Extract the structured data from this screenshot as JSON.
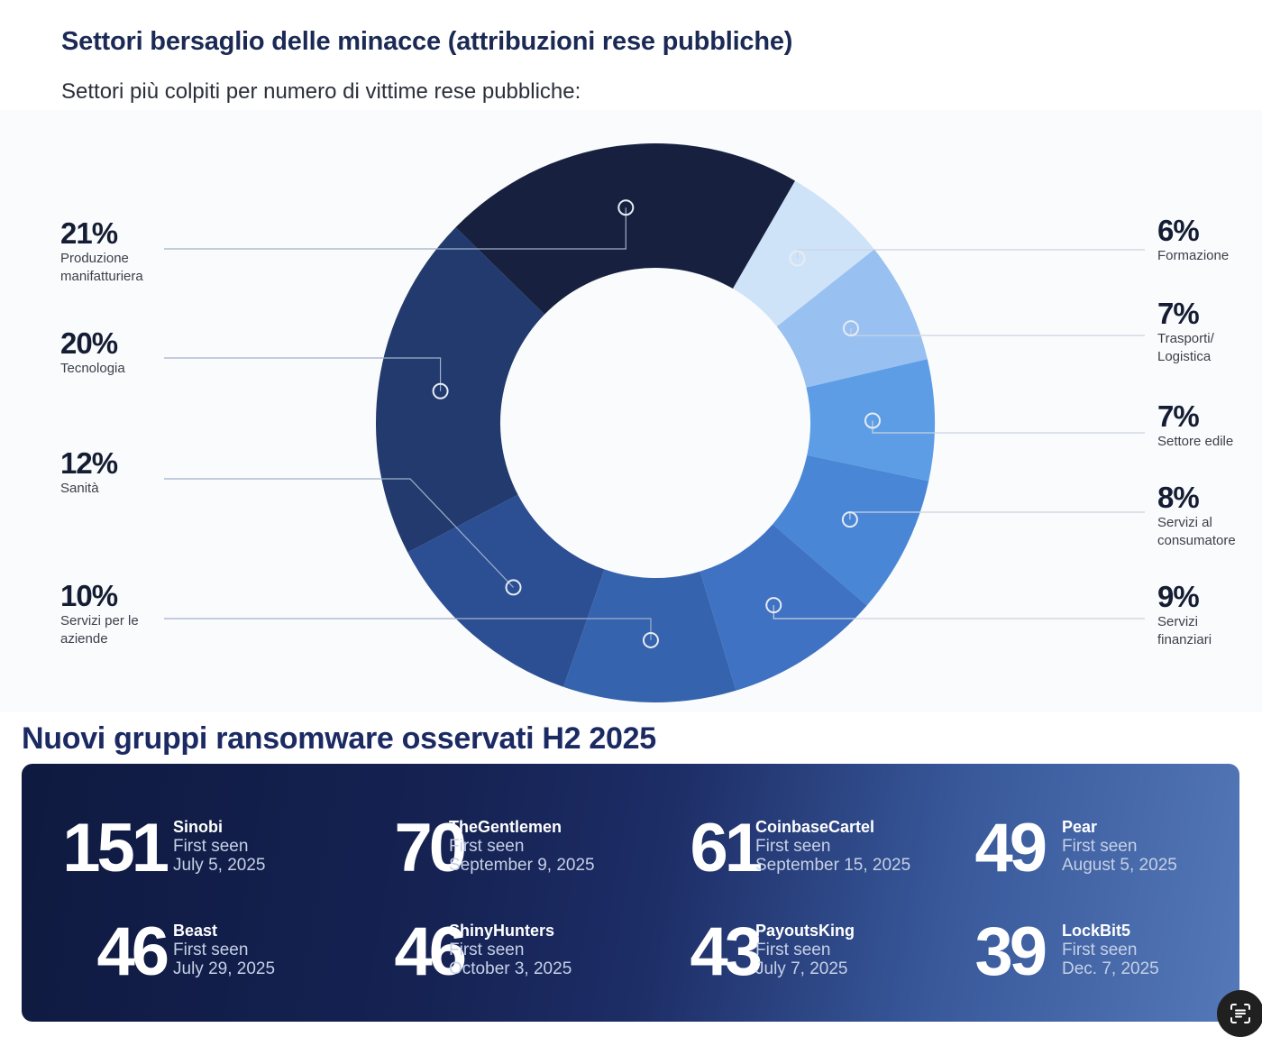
{
  "chart_data": {
    "type": "pie",
    "style": "donut",
    "title": "Settori bersaglio delle minacce (attribuzioni rese pubbliche)",
    "subtitle": "Settori più colpiti per numero di vittime rese pubbliche:",
    "slices": [
      {
        "label": "Formazione",
        "value": 6,
        "pct_label": "6%",
        "color": "#cfe3f8"
      },
      {
        "label": "Trasporti/ Logistica",
        "value": 7,
        "pct_label": "7%",
        "color": "#98c0f1"
      },
      {
        "label": "Settore edile",
        "value": 7,
        "pct_label": "7%",
        "color": "#5c9de6"
      },
      {
        "label": "Servizi al consumatore",
        "value": 8,
        "pct_label": "8%",
        "color": "#4a86d6"
      },
      {
        "label": "Servizi finanziari",
        "value": 9,
        "pct_label": "9%",
        "color": "#3f72c2"
      },
      {
        "label": "Servizi per le aziende",
        "value": 10,
        "pct_label": "10%",
        "color": "#3563ae"
      },
      {
        "label": "Sanità",
        "value": 12,
        "pct_label": "12%",
        "color": "#2c4f93"
      },
      {
        "label": "Tecnologia",
        "value": 20,
        "pct_label": "20%",
        "color": "#223a6d"
      },
      {
        "label": "Produzione manifatturiera",
        "value": 21,
        "pct_label": "21%",
        "color": "#17213f"
      }
    ]
  },
  "groups_section": {
    "title": "Nuovi gruppi ransomware osservati H2 2025",
    "first_seen_label": "First seen",
    "groups": [
      {
        "count": "151",
        "name": "Sinobi",
        "date": "July 5, 2025"
      },
      {
        "count": "70",
        "name": "TheGentlemen",
        "date": "September 9, 2025"
      },
      {
        "count": "61",
        "name": "CoinbaseCartel",
        "date": "September 15, 2025"
      },
      {
        "count": "49",
        "name": "Pear",
        "date": "August 5, 2025"
      },
      {
        "count": "46",
        "name": "Beast",
        "date": "July 29, 2025"
      },
      {
        "count": "46",
        "name": "ShinyHunters",
        "date": "October 3, 2025"
      },
      {
        "count": "43",
        "name": "PayoutsKing",
        "date": "July 7, 2025"
      },
      {
        "count": "39",
        "name": "LockBit5",
        "date": "Dec. 7, 2025"
      }
    ]
  },
  "icons": {
    "fab": "text-scan-icon"
  }
}
